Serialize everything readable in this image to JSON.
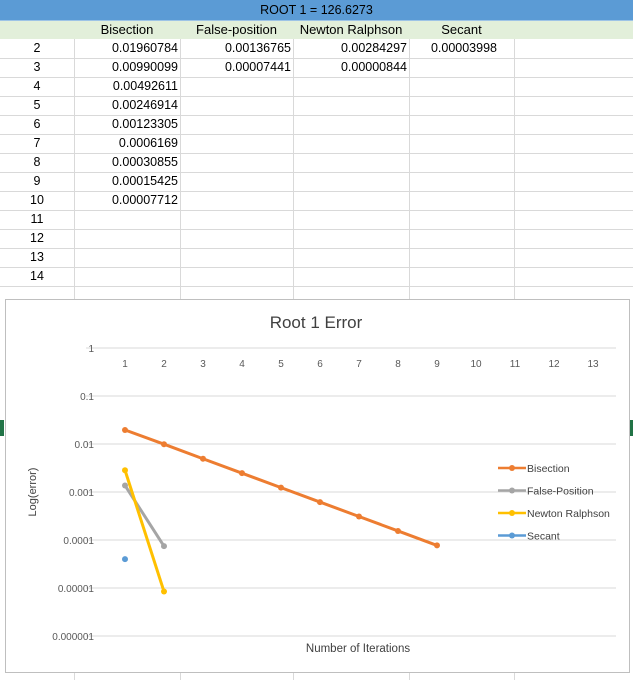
{
  "spreadsheet": {
    "title": "ROOT 1 = 126.6273",
    "headers": [
      "Bisection",
      "False-position",
      "Newton Ralphson",
      "Secant"
    ],
    "row_labels": [
      "2",
      "3",
      "4",
      "5",
      "6",
      "7",
      "8",
      "9",
      "10",
      "11",
      "12",
      "13",
      "14"
    ],
    "bisection": [
      "0.01960784",
      "0.00990099",
      "0.00492611",
      "0.00246914",
      "0.00123305",
      "0.0006169",
      "0.00030855",
      "0.00015425",
      "0.00007712"
    ],
    "false_position": [
      "0.00136765",
      "0.00007441"
    ],
    "newton_ralphson": [
      "0.00284297",
      "0.00000844"
    ],
    "secant": [
      "0.00003998"
    ]
  },
  "chart_data": {
    "type": "line",
    "title": "Root 1 Error",
    "xlabel": "Number of Iterations",
    "ylabel": "Log(error)",
    "y_scale": "log",
    "ylim": [
      1e-06,
      1
    ],
    "y_ticks": [
      "1",
      "0.1",
      "0.01",
      "0.001",
      "0.0001",
      "0.00001",
      "0.000001"
    ],
    "x_ticks": [
      "1",
      "2",
      "3",
      "4",
      "5",
      "6",
      "7",
      "8",
      "9",
      "10",
      "11",
      "12",
      "13"
    ],
    "grid": "horizontal",
    "legend_position": "right",
    "series": [
      {
        "name": "Bisection",
        "color": "#ed7d31",
        "x": [
          1,
          2,
          3,
          4,
          5,
          6,
          7,
          8,
          9
        ],
        "values": [
          0.01960784,
          0.00990099,
          0.00492611,
          0.00246914,
          0.00123305,
          0.0006169,
          0.00030855,
          0.00015425,
          7.712e-05
        ]
      },
      {
        "name": "False-Position",
        "color": "#a5a5a5",
        "x": [
          1,
          2
        ],
        "values": [
          0.00136765,
          7.441e-05
        ]
      },
      {
        "name": "Newton Ralphson",
        "color": "#ffc000",
        "x": [
          1,
          2
        ],
        "values": [
          0.00284297,
          8.44e-06
        ]
      },
      {
        "name": "Secant",
        "color": "#5b9bd5",
        "x": [
          1
        ],
        "values": [
          3.998e-05
        ]
      }
    ]
  }
}
